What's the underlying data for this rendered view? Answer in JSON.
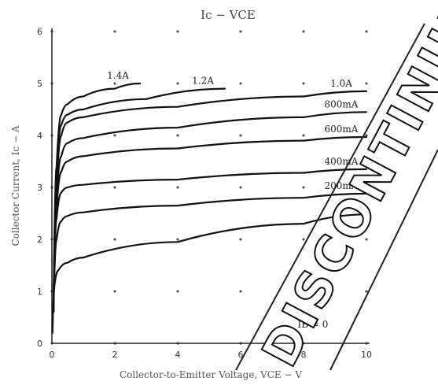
{
  "chart_data": {
    "type": "line",
    "title": "Ic − VCE",
    "xlabel": "Collector-to-Emitter Voltage, VCE − V",
    "ylabel": "Collector Current, Ic − A",
    "xlim": [
      0,
      10
    ],
    "ylim": [
      0,
      6
    ],
    "xticks": [
      "0",
      "2",
      "4",
      "6",
      "8",
      "10"
    ],
    "yticks": [
      "0",
      "1",
      "2",
      "3",
      "4",
      "5",
      "6"
    ],
    "grid": "dotted",
    "series": [
      {
        "name": "1.4A",
        "points": [
          [
            0.05,
            0.6
          ],
          [
            0.15,
            3.4
          ],
          [
            0.3,
            4.4
          ],
          [
            0.5,
            4.6
          ],
          [
            1.0,
            4.75
          ],
          [
            2.0,
            4.9
          ],
          [
            2.8,
            5.0
          ]
        ]
      },
      {
        "name": "1.2A",
        "points": [
          [
            0.05,
            0.6
          ],
          [
            0.15,
            3.2
          ],
          [
            0.3,
            4.2
          ],
          [
            0.5,
            4.4
          ],
          [
            1.0,
            4.5
          ],
          [
            3.0,
            4.7
          ],
          [
            5.5,
            4.9
          ]
        ]
      },
      {
        "name": "1.0A",
        "points": [
          [
            0.05,
            0.6
          ],
          [
            0.15,
            3.0
          ],
          [
            0.3,
            4.0
          ],
          [
            0.5,
            4.25
          ],
          [
            1.0,
            4.35
          ],
          [
            4.0,
            4.55
          ],
          [
            8.0,
            4.75
          ],
          [
            10.0,
            4.85
          ]
        ]
      },
      {
        "name": "800mA",
        "points": [
          [
            0.05,
            0.6
          ],
          [
            0.15,
            2.8
          ],
          [
            0.3,
            3.6
          ],
          [
            0.5,
            3.85
          ],
          [
            1.0,
            3.95
          ],
          [
            4.0,
            4.15
          ],
          [
            8.0,
            4.35
          ],
          [
            10.0,
            4.45
          ]
        ]
      },
      {
        "name": "600mA",
        "points": [
          [
            0.05,
            0.6
          ],
          [
            0.15,
            2.6
          ],
          [
            0.3,
            3.3
          ],
          [
            0.5,
            3.5
          ],
          [
            1.0,
            3.6
          ],
          [
            4.0,
            3.75
          ],
          [
            8.0,
            3.9
          ],
          [
            10.0,
            3.97
          ]
        ]
      },
      {
        "name": "400mA",
        "points": [
          [
            0.05,
            0.6
          ],
          [
            0.15,
            2.4
          ],
          [
            0.3,
            2.9
          ],
          [
            0.5,
            3.0
          ],
          [
            1.0,
            3.05
          ],
          [
            4.0,
            3.15
          ],
          [
            8.0,
            3.28
          ],
          [
            10.0,
            3.35
          ]
        ]
      },
      {
        "name": "200mA",
        "points": [
          [
            0.05,
            0.6
          ],
          [
            0.15,
            2.0
          ],
          [
            0.3,
            2.35
          ],
          [
            0.5,
            2.45
          ],
          [
            1.0,
            2.52
          ],
          [
            4.0,
            2.65
          ],
          [
            8.0,
            2.8
          ],
          [
            10.0,
            2.88
          ]
        ]
      },
      {
        "name": "0A",
        "points": [
          [
            0.02,
            0.2
          ],
          [
            0.08,
            1.1
          ],
          [
            0.2,
            1.4
          ],
          [
            0.5,
            1.55
          ],
          [
            1.0,
            1.65
          ],
          [
            4.0,
            1.95
          ],
          [
            8.0,
            2.3
          ],
          [
            10.0,
            2.48
          ]
        ]
      }
    ],
    "baseline_label": "IB = 0"
  },
  "watermark": "DISCONTINUED"
}
